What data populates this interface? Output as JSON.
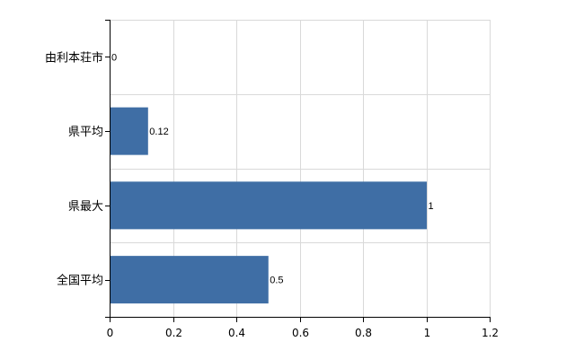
{
  "chart_data": {
    "type": "bar",
    "orientation": "horizontal",
    "categories": [
      "由利本荘市",
      "県平均",
      "県最大",
      "全国平均"
    ],
    "values": [
      0,
      0.12,
      1,
      0.5
    ],
    "value_labels": [
      "0",
      "0.12",
      "1",
      "0.5"
    ],
    "x_ticks": [
      "0",
      "0.2",
      "0.4",
      "0.6",
      "0.8",
      "1",
      "1.2"
    ],
    "xlim": [
      0,
      1.2
    ],
    "grid": true,
    "bar_color": "#3f6ea5",
    "grid_color": "#d9d9d9"
  }
}
